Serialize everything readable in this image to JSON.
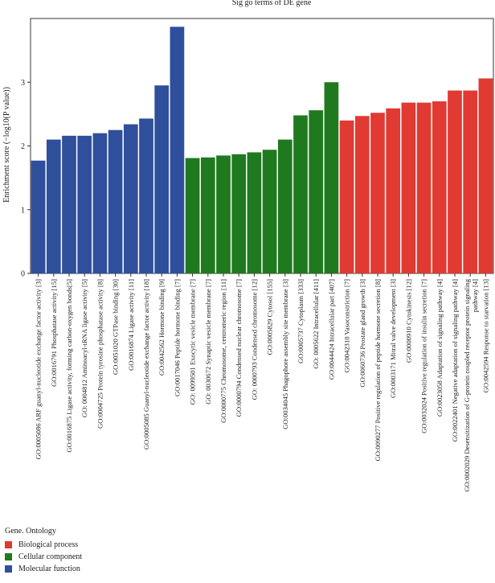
{
  "chart_data": {
    "type": "bar",
    "title": "Sig go terms of DE gene",
    "ylabel": "Enrichment score (−log10(P value))",
    "xlabel": "",
    "ylim": [
      0,
      4
    ],
    "yticks": [
      0,
      1,
      2,
      3
    ],
    "categories": [
      "GO:0005086 ARF guanyl-nucleotide exchange factor activity [3]",
      "GO:0016791 Phosphatase activity [15]",
      "GO:0016875 Ligase activity, forming carbon-oxygen bonds[5]",
      "GO: 0004812 Aminoacyl-tRNA ligase activity [5]",
      "GO:0004725 Protein tyrosine phosphatase activity [8]",
      "GO:0051020 GTPase binding [30]",
      "GO:0016874 Ligase activity [11]",
      "GO:0005085 Guanyl-nucleotide exchange factor activity [18]",
      "GO:0042562 Hormone binding [9]",
      "GO:0017046 Peptide hormone binding [7]",
      "GO: 0099501 Exocytic vesicle membrane [7]",
      "GO: 0030672 Synaptic vesicle membrane [7]",
      "GO:0000775 Chromosome, centromeric region [11]",
      "GO:0000794 Condensed nuclear chromosome [7]",
      "GO: 0000793 Condensed chromosome [12]",
      "GO:0005829 Cytosol [155]",
      "GO:0034045 Phagophore assembly site membrane [3]",
      "GO:0005737 Cytoplasm [333]",
      "GO: 0005622 Intracellular [411]",
      "GO:0044424 Intracellular part [407]",
      "GO:0042310 Vasoconstriction [7]",
      "GO:0060736 Prostate gland growth [3]",
      "GO:0090277 Positive regulation of peptide hormone secretion [8]",
      "GO:0003171 Mitral valve development [3]",
      "GO:0000910 Cytokinesis [12]",
      "GO:0032024 Positive regulation of insulin secretion [7]",
      "GO:0023058 Adaptation of signaling pathway [4]",
      "GO:0022401 Negative adaptation of signaling pathway [4]",
      "GO:0002029 Desensitization of G-protein coupled receptor protein signaling pathway [4]",
      "GO:0042594 Response to starvation [13]"
    ],
    "values": [
      1.77,
      2.1,
      2.16,
      2.16,
      2.2,
      2.25,
      2.34,
      2.43,
      2.95,
      3.87,
      1.81,
      1.82,
      1.85,
      1.87,
      1.9,
      1.94,
      2.1,
      2.48,
      2.56,
      3.0,
      2.4,
      2.47,
      2.52,
      2.59,
      2.68,
      2.68,
      2.7,
      2.87,
      2.87,
      3.06
    ],
    "groups": [
      "Molecular function",
      "Molecular function",
      "Molecular function",
      "Molecular function",
      "Molecular function",
      "Molecular function",
      "Molecular function",
      "Molecular function",
      "Molecular function",
      "Molecular function",
      "Cellular component",
      "Cellular component",
      "Cellular component",
      "Cellular component",
      "Cellular component",
      "Cellular component",
      "Cellular component",
      "Cellular component",
      "Cellular component",
      "Cellular component",
      "Biological process",
      "Biological process",
      "Biological process",
      "Biological process",
      "Biological process",
      "Biological process",
      "Biological process",
      "Biological process",
      "Biological process",
      "Biological process"
    ],
    "legend": {
      "title": "Gene. Ontology",
      "entries": [
        {
          "name": "Biological process",
          "color": "#e03a33"
        },
        {
          "name": "Cellular component",
          "color": "#1f7a1f"
        },
        {
          "name": "Molecular function",
          "color": "#2f4f9c"
        }
      ]
    }
  }
}
